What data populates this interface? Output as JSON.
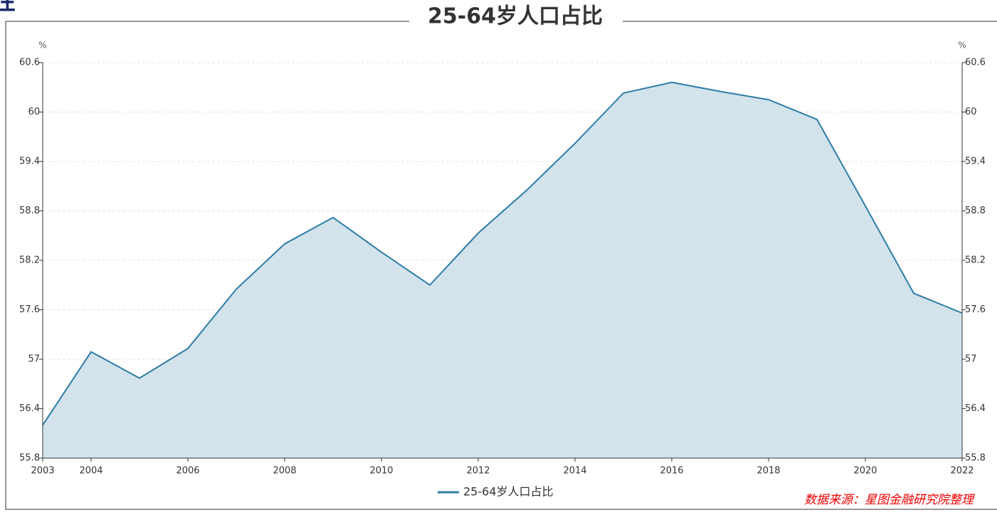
{
  "page_heading_fragment": "性",
  "chart_data": {
    "type": "area",
    "title": "25-64岁人口占比",
    "y_unit": "%",
    "y2_unit": "%",
    "x": [
      2003,
      2004,
      2005,
      2006,
      2007,
      2008,
      2009,
      2010,
      2011,
      2012,
      2013,
      2014,
      2015,
      2016,
      2017,
      2018,
      2019,
      2020,
      2021,
      2022
    ],
    "series": [
      {
        "name": "25-64岁人口占比",
        "color": "#2e7ca6",
        "fill": "#d2e3ec",
        "values": [
          56.2,
          57.09,
          56.77,
          57.13,
          57.85,
          58.4,
          58.72,
          58.3,
          57.9,
          58.53,
          59.05,
          59.62,
          60.23,
          60.36,
          60.25,
          60.15,
          59.91,
          58.86,
          57.8,
          57.56
        ]
      }
    ],
    "xlim": [
      2003,
      2022
    ],
    "xticks": [
      2003,
      2004,
      2006,
      2008,
      2010,
      2012,
      2014,
      2016,
      2018,
      2020,
      2022
    ],
    "ylim": [
      55.8,
      60.6
    ],
    "yticks": [
      55.8,
      56.4,
      57,
      57.6,
      58.2,
      58.8,
      59.4,
      60,
      60.6
    ],
    "y2lim": [
      55.8,
      60.6
    ],
    "y2ticks": [
      55.8,
      56.4,
      57,
      57.6,
      58.2,
      58.8,
      59.4,
      60,
      60.6
    ],
    "grid": true,
    "legend": "bottom",
    "source": "数据来源：星图金融研究院整理"
  }
}
